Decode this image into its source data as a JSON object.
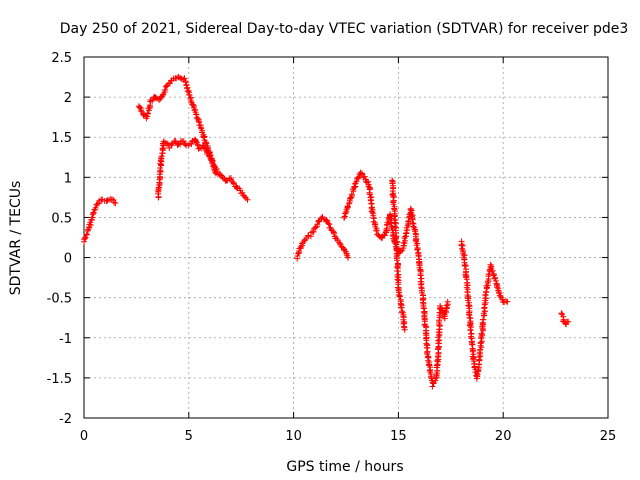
{
  "chart_data": {
    "type": "scatter",
    "title": "Day 250 of 2021, Sidereal Day-to-day VTEC variation (SDTVAR) for receiver pde3",
    "xlabel": "GPS time / hours",
    "ylabel": "SDTVAR / TECUs",
    "xlim": [
      0,
      25
    ],
    "ylim": [
      -2,
      2.5
    ],
    "xticks": [
      0,
      5,
      10,
      15,
      20,
      25
    ],
    "yticks": [
      -2,
      -1.5,
      -1,
      -0.5,
      0,
      0.5,
      1,
      1.5,
      2,
      2.5
    ],
    "xtick_labels": [
      "0",
      "5",
      "10",
      "15",
      "20",
      "25"
    ],
    "ytick_labels": [
      "-2",
      "-1.5",
      "-1",
      "-0.5",
      "0",
      "0.5",
      "1",
      "1.5",
      "2",
      "2.5"
    ],
    "grid": true,
    "marker": "+",
    "color": "#ff0000",
    "series": [
      {
        "name": "SDTVAR",
        "segments": [
          {
            "x": [
              0.0,
              0.15,
              0.3,
              0.45,
              0.6,
              0.75,
              0.9,
              1.05,
              1.2,
              1.35,
              1.5
            ],
            "y": [
              0.2,
              0.3,
              0.42,
              0.55,
              0.65,
              0.7,
              0.72,
              0.7,
              0.73,
              0.72,
              0.68
            ]
          },
          {
            "x": [
              2.6,
              2.8,
              3.0,
              3.2,
              3.4,
              3.6,
              3.8,
              4.0,
              4.2,
              4.4,
              4.6,
              4.8,
              5.0,
              5.2,
              5.4,
              5.6,
              5.8,
              6.0,
              6.2,
              6.4,
              6.6,
              6.8,
              7.0,
              7.2,
              7.4,
              7.6,
              7.8
            ],
            "y": [
              1.9,
              1.8,
              1.75,
              1.95,
              2.0,
              1.95,
              2.05,
              2.15,
              2.22,
              2.25,
              2.25,
              2.22,
              2.05,
              1.9,
              1.75,
              1.6,
              1.45,
              1.3,
              1.15,
              1.05,
              1.0,
              0.95,
              0.98,
              0.9,
              0.85,
              0.78,
              0.72
            ]
          },
          {
            "x": [
              3.55,
              3.62,
              3.7,
              3.8,
              3.95,
              4.1,
              4.3,
              4.5,
              4.7,
              4.9,
              5.1,
              5.3,
              5.5,
              5.7,
              5.9,
              6.1,
              6.3
            ],
            "y": [
              0.75,
              1.0,
              1.25,
              1.45,
              1.42,
              1.38,
              1.45,
              1.4,
              1.45,
              1.4,
              1.42,
              1.48,
              1.35,
              1.4,
              1.3,
              1.2,
              1.05
            ]
          },
          {
            "x": [
              10.15,
              10.3,
              10.45,
              10.6,
              10.8,
              11.0,
              11.2,
              11.4,
              11.6,
              11.8,
              12.0,
              12.2,
              12.4,
              12.6
            ],
            "y": [
              0.0,
              0.1,
              0.2,
              0.25,
              0.28,
              0.35,
              0.45,
              0.5,
              0.45,
              0.35,
              0.25,
              0.18,
              0.12,
              0.0
            ]
          },
          {
            "x": [
              12.4,
              12.6,
              12.8,
              13.0,
              13.2,
              13.4,
              13.6,
              13.8,
              14.0,
              14.2,
              14.4,
              14.6,
              14.8,
              15.0,
              15.2,
              15.4,
              15.6,
              15.8,
              16.0
            ],
            "y": [
              0.5,
              0.65,
              0.8,
              0.95,
              1.05,
              1.0,
              0.9,
              0.5,
              0.3,
              0.25,
              0.3,
              0.55,
              0.2,
              0.05,
              0.1,
              0.35,
              0.6,
              0.3,
              -0.05
            ]
          },
          {
            "x": [
              14.7,
              14.8,
              14.9,
              15.0,
              15.15,
              15.3
            ],
            "y": [
              0.97,
              0.6,
              0.3,
              -0.4,
              -0.6,
              -0.9
            ]
          },
          {
            "x": [
              16.0,
              16.2,
              16.4,
              16.5,
              16.65,
              16.8,
              16.9,
              17.0,
              17.2,
              17.35
            ],
            "y": [
              -0.05,
              -0.6,
              -1.2,
              -1.4,
              -1.6,
              -1.5,
              -1.2,
              -0.6,
              -0.75,
              -0.55
            ]
          },
          {
            "x": [
              18.0,
              18.15,
              18.3,
              18.45,
              18.6,
              18.75,
              18.9,
              19.05,
              19.2,
              19.4,
              19.6,
              19.8,
              20.0,
              20.2
            ],
            "y": [
              0.2,
              0.0,
              -0.4,
              -0.9,
              -1.3,
              -1.5,
              -1.2,
              -0.8,
              -0.4,
              -0.1,
              -0.25,
              -0.45,
              -0.55,
              -0.55
            ]
          },
          {
            "x": [
              22.8,
              22.9,
              23.0,
              23.1
            ],
            "y": [
              -0.7,
              -0.8,
              -0.82,
              -0.8
            ]
          }
        ]
      }
    ]
  }
}
